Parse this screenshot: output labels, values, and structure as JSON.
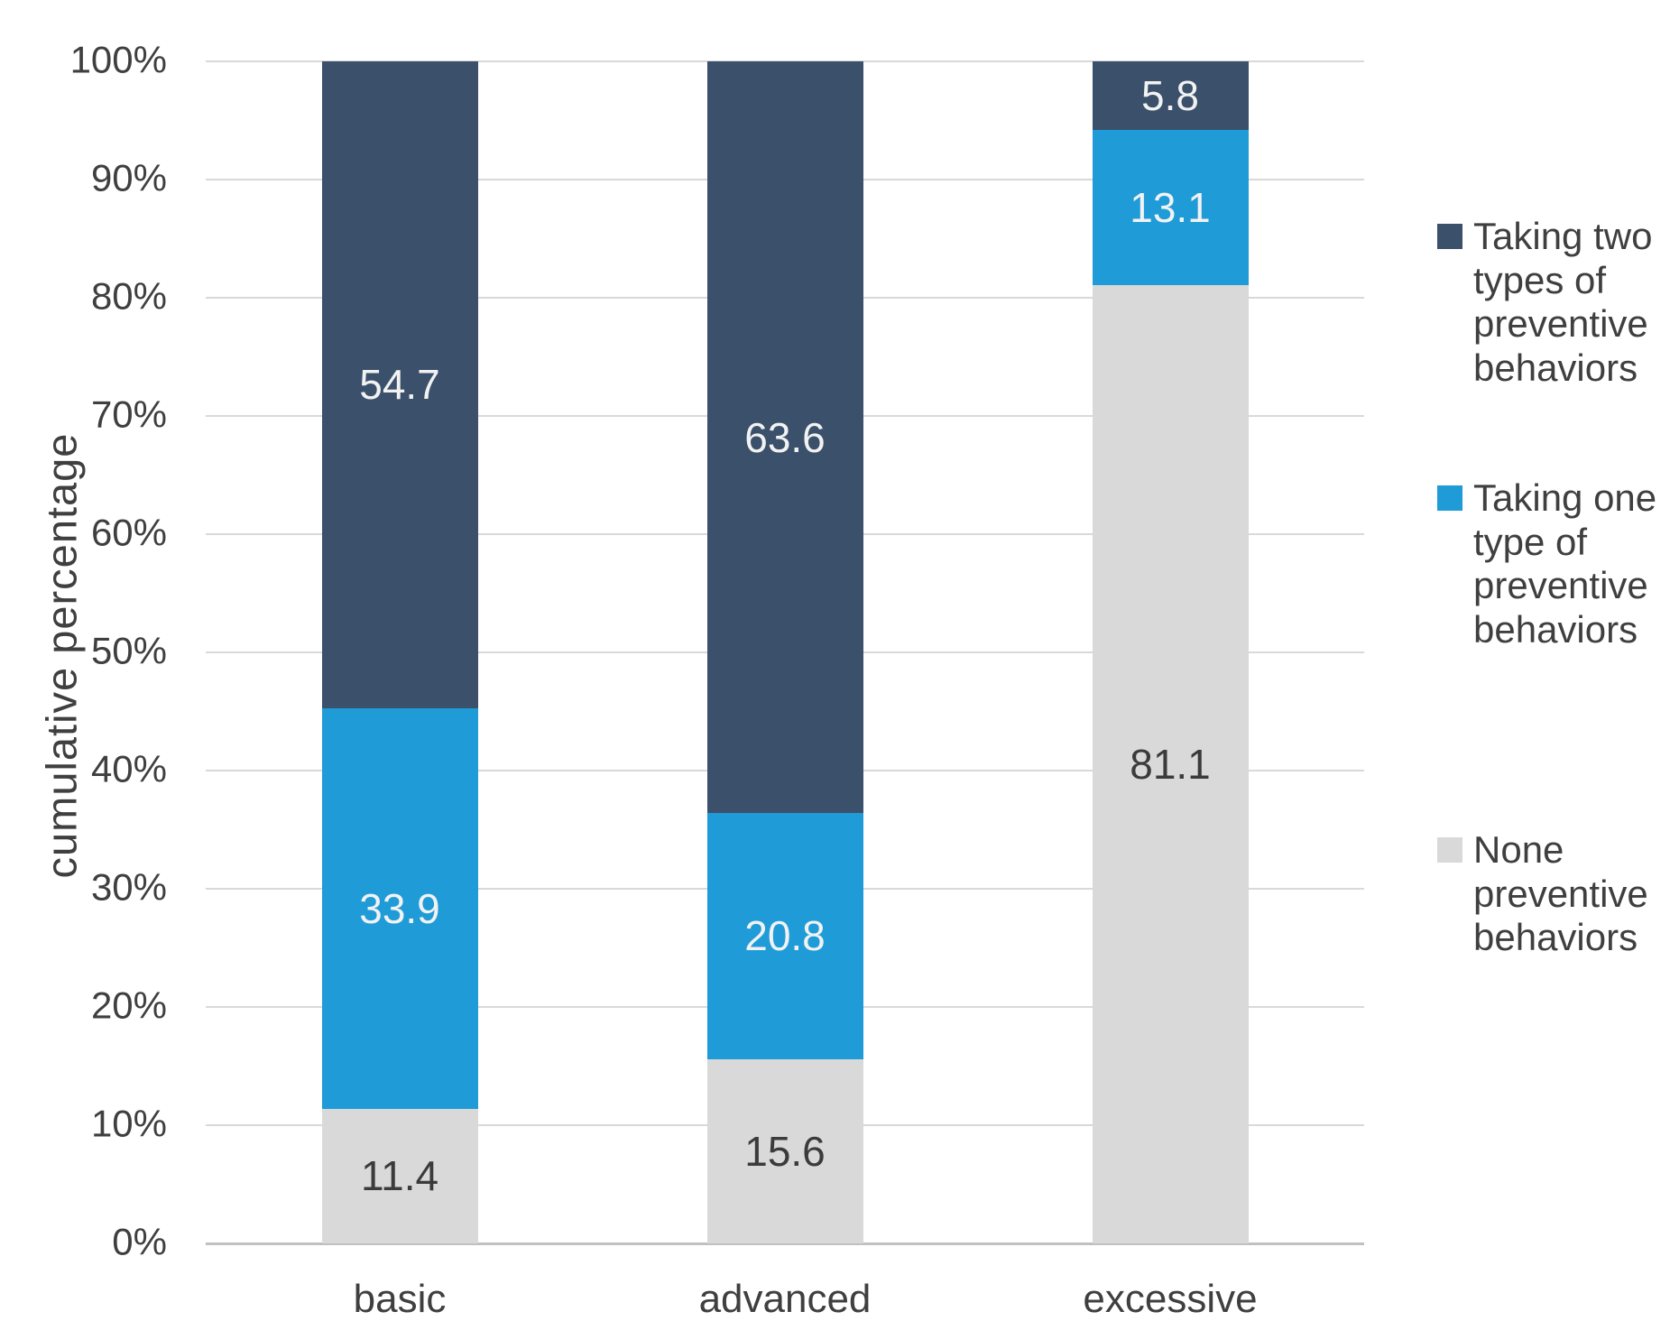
{
  "chart_data": {
    "type": "bar",
    "stacked": true,
    "title": "",
    "xlabel": "",
    "ylabel": "cumulative percentage",
    "categories": [
      "basic",
      "advanced",
      "excessive"
    ],
    "series": [
      {
        "name": "None preventive behaviors",
        "values": [
          11.4,
          15.6,
          81.1
        ],
        "color": "#d9d9d9",
        "label_color": "#3b3b3b"
      },
      {
        "name": "Taking one type of preventive behaviors",
        "values": [
          33.9,
          20.8,
          13.1
        ],
        "color": "#1f9cd8",
        "label_color": "#f2f2f2"
      },
      {
        "name": "Taking two types of preventive behaviors",
        "values": [
          54.7,
          63.6,
          5.8
        ],
        "color": "#3a506b",
        "label_color": "#f2f2f2"
      }
    ],
    "ylim": [
      0,
      100
    ],
    "ytick_step": 10,
    "ytick_labels": [
      "0%",
      "10%",
      "20%",
      "30%",
      "40%",
      "50%",
      "60%",
      "70%",
      "80%",
      "90%",
      "100%"
    ],
    "grid": true,
    "legend_position": "right",
    "legend": [
      {
        "label": "Taking two types of preventive behaviors",
        "color": "#3a506b"
      },
      {
        "label": "Taking one type of preventive behaviors",
        "color": "#1f9cd8"
      },
      {
        "label": "None preventive behaviors",
        "color": "#d9d9d9"
      }
    ]
  }
}
